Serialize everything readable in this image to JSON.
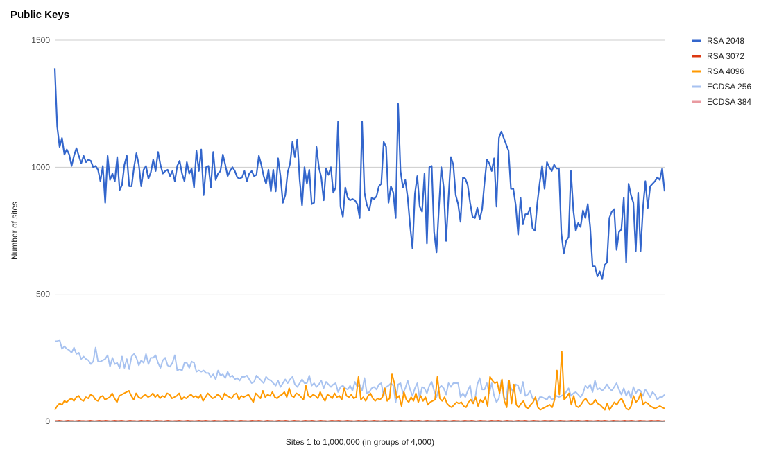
{
  "chart_data": {
    "type": "line",
    "title": "Public Keys",
    "xlabel": "Sites 1 to 1,000,000 (in groups of 4,000)",
    "ylabel": "Number of sites",
    "ylim": [
      0,
      1500
    ],
    "yticks": [
      0,
      500,
      1000,
      1500
    ],
    "grid": true,
    "legend_position": "right",
    "series": [
      {
        "name": "RSA 2048",
        "color": "#3366cc",
        "values": [
          1390,
          1160,
          1080,
          1115,
          1050,
          1070,
          1050,
          1005,
          1045,
          1075,
          1045,
          1015,
          1045,
          1020,
          1030,
          1025,
          1000,
          1005,
          990,
          945,
          1005,
          860,
          1045,
          950,
          975,
          945,
          1040,
          910,
          930,
          1010,
          1045,
          925,
          925,
          1000,
          1055,
          1010,
          925,
          990,
          1005,
          955,
          980,
          1030,
          985,
          1060,
          1010,
          975,
          985,
          990,
          965,
          985,
          945,
          1005,
          1025,
          975,
          945,
          1020,
          975,
          995,
          920,
          1065,
          985,
          1070,
          890,
          1000,
          1005,
          920,
          1060,
          950,
          975,
          985,
          1050,
          1010,
          965,
          985,
          1000,
          985,
          960,
          955,
          960,
          985,
          945,
          975,
          985,
          965,
          970,
          1045,
          1010,
          965,
          935,
          990,
          905,
          990,
          905,
          1035,
          965,
          860,
          890,
          980,
          1015,
          1100,
          1040,
          1110,
          950,
          850,
          1000,
          935,
          990,
          855,
          860,
          1080,
          1000,
          960,
          870,
          995,
          970,
          1000,
          900,
          920,
          1180,
          845,
          805,
          920,
          880,
          870,
          875,
          870,
          855,
          800,
          1180,
          900,
          850,
          830,
          880,
          875,
          885,
          925,
          935,
          1100,
          1080,
          860,
          925,
          900,
          800,
          1250,
          985,
          920,
          950,
          880,
          770,
          680,
          895,
          965,
          845,
          825,
          975,
          700,
          1000,
          1005,
          745,
          665,
          840,
          1000,
          920,
          710,
          880,
          1040,
          1010,
          890,
          855,
          785,
          960,
          955,
          930,
          860,
          805,
          800,
          840,
          795,
          835,
          940,
          1030,
          1015,
          985,
          1035,
          845,
          1115,
          1140,
          1115,
          1090,
          1065,
          915,
          915,
          850,
          735,
          880,
          775,
          815,
          815,
          840,
          760,
          750,
          860,
          940,
          1005,
          915,
          1020,
          1000,
          985,
          1010,
          995,
          995,
          740,
          660,
          710,
          725,
          985,
          830,
          750,
          780,
          765,
          830,
          800,
          855,
          765,
          610,
          610,
          570,
          590,
          560,
          615,
          625,
          800,
          825,
          835,
          675,
          745,
          755,
          880,
          625,
          935,
          890,
          860,
          670,
          900,
          670,
          840,
          945,
          840,
          925,
          935,
          945,
          960,
          950,
          995,
          905
        ]
      },
      {
        "name": "RSA 3072",
        "color": "#dc3912",
        "values": [
          2,
          2,
          3,
          2,
          1,
          2,
          3,
          2,
          2,
          1,
          2,
          3,
          2,
          2,
          1,
          2,
          3,
          2,
          1,
          2,
          3,
          2,
          2,
          3,
          2,
          1,
          2,
          3,
          2,
          2,
          3,
          2,
          1,
          2,
          3,
          2,
          2,
          1,
          2,
          3,
          2,
          2,
          3,
          2,
          1,
          2,
          3,
          2,
          2,
          1,
          2,
          3,
          2,
          1,
          2,
          2,
          3,
          2,
          1,
          2,
          3,
          2,
          2,
          1,
          2,
          3,
          2,
          2,
          3,
          2,
          1,
          2,
          3,
          2,
          2,
          1,
          2,
          3,
          2,
          2,
          3,
          2,
          1,
          2,
          3,
          2,
          2,
          1,
          2,
          3,
          2,
          2,
          3,
          2,
          1,
          2,
          3,
          2,
          2,
          1,
          2,
          3,
          2,
          2,
          3,
          2,
          1,
          2,
          3,
          2,
          2,
          1,
          2,
          3,
          2,
          2,
          3,
          2,
          1,
          2,
          3,
          2,
          2,
          1,
          2,
          3,
          2,
          2,
          3,
          2,
          1,
          2,
          3,
          2,
          2,
          1,
          2,
          3,
          2,
          2,
          3,
          2,
          1,
          2,
          3,
          2,
          2,
          1,
          2,
          3,
          2,
          2,
          3,
          2,
          1,
          2,
          3,
          2,
          2,
          1,
          2,
          3,
          2,
          2,
          3,
          2,
          1,
          2,
          3,
          2,
          2,
          1,
          2,
          3,
          2,
          2,
          3,
          2,
          1,
          2,
          3,
          2,
          2,
          1,
          2,
          3,
          2,
          2,
          3,
          2,
          1,
          2,
          3,
          2,
          2,
          1,
          2,
          3,
          2,
          2,
          3,
          2,
          1,
          2,
          3,
          2,
          2,
          1,
          2,
          3,
          2,
          2,
          3,
          2,
          1,
          2,
          3,
          2,
          2,
          1,
          2,
          3,
          2,
          2,
          3,
          2,
          1,
          2,
          3,
          2,
          2,
          1,
          2,
          3,
          2,
          2,
          3,
          2,
          1,
          2,
          3,
          2,
          2,
          1,
          2,
          3,
          2,
          2,
          3,
          2,
          1,
          2,
          3,
          2,
          2,
          1,
          2,
          3,
          2,
          2,
          3,
          2,
          1,
          2,
          3,
          2,
          2,
          1,
          2,
          3,
          2,
          2,
          3,
          2,
          1,
          2
        ]
      },
      {
        "name": "RSA 4096",
        "color": "#ff9900",
        "values": [
          45,
          60,
          70,
          65,
          80,
          75,
          85,
          90,
          80,
          95,
          100,
          85,
          80,
          95,
          90,
          105,
          100,
          85,
          80,
          95,
          100,
          85,
          90,
          95,
          110,
          90,
          75,
          100,
          105,
          110,
          115,
          120,
          100,
          85,
          110,
          95,
          90,
          100,
          105,
          95,
          100,
          110,
          95,
          105,
          90,
          100,
          95,
          110,
          105,
          90,
          95,
          100,
          110,
          85,
          95,
          90,
          100,
          105,
          95,
          100,
          90,
          105,
          80,
          95,
          110,
          100,
          90,
          95,
          105,
          100,
          85,
          110,
          100,
          95,
          90,
          105,
          110,
          85,
          100,
          95,
          100,
          105,
          90,
          75,
          110,
          100,
          90,
          120,
          95,
          105,
          100,
          115,
          95,
          90,
          100,
          105,
          115,
          95,
          130,
          100,
          95,
          110,
          105,
          95,
          85,
          140,
          100,
          95,
          105,
          100,
          90,
          115,
          95,
          80,
          105,
          100,
          90,
          110,
          95,
          100,
          85,
          130,
          100,
          95,
          105,
          90,
          95,
          175,
          85,
          95,
          80,
          100,
          110,
          90,
          80,
          90,
          85,
          95,
          130,
          80,
          90,
          185,
          150,
          90,
          100,
          60,
          115,
          85,
          75,
          95,
          80,
          110,
          75,
          100,
          80,
          95,
          65,
          75,
          80,
          85,
          175,
          90,
          80,
          95,
          70,
          60,
          55,
          65,
          75,
          70,
          75,
          60,
          55,
          75,
          85,
          70,
          95,
          60,
          85,
          75,
          95,
          60,
          175,
          160,
          150,
          155,
          110,
          165,
          80,
          55,
          160,
          70,
          145,
          65,
          55,
          70,
          80,
          55,
          50,
          65,
          75,
          95,
          55,
          45,
          50,
          55,
          60,
          65,
          55,
          85,
          200,
          105,
          275,
          85,
          95,
          110,
          65,
          100,
          60,
          55,
          65,
          80,
          90,
          75,
          65,
          70,
          85,
          70,
          65,
          55,
          45,
          70,
          45,
          60,
          75,
          65,
          80,
          90,
          70,
          50,
          45,
          60,
          100,
          75,
          85,
          110,
          65,
          75,
          70,
          60,
          55,
          50,
          55,
          60,
          55,
          50
        ]
      },
      {
        "name": "ECDSA 256",
        "color": "#a7c2f0",
        "values": [
          315,
          315,
          320,
          285,
          295,
          285,
          280,
          270,
          290,
          265,
          270,
          245,
          255,
          245,
          240,
          225,
          235,
          290,
          235,
          235,
          240,
          245,
          260,
          215,
          250,
          225,
          230,
          210,
          255,
          210,
          245,
          205,
          255,
          265,
          250,
          220,
          240,
          230,
          265,
          225,
          250,
          250,
          260,
          230,
          210,
          240,
          250,
          220,
          215,
          230,
          260,
          200,
          205,
          200,
          230,
          230,
          210,
          235,
          230,
          195,
          200,
          195,
          200,
          190,
          190,
          175,
          185,
          165,
          200,
          180,
          185,
          170,
          195,
          175,
          180,
          165,
          170,
          160,
          175,
          175,
          180,
          165,
          150,
          155,
          180,
          170,
          160,
          150,
          175,
          165,
          160,
          150,
          140,
          160,
          135,
          150,
          165,
          150,
          165,
          175,
          145,
          135,
          150,
          165,
          150,
          150,
          180,
          140,
          150,
          135,
          145,
          160,
          130,
          155,
          145,
          135,
          145,
          150,
          115,
          135,
          140,
          130,
          125,
          140,
          120,
          155,
          135,
          145,
          120,
          170,
          110,
          115,
          130,
          135,
          125,
          145,
          150,
          100,
          135,
          140,
          150,
          140,
          75,
          145,
          150,
          110,
          130,
          160,
          125,
          100,
          130,
          150,
          90,
          135,
          130,
          110,
          140,
          155,
          120,
          95,
          130,
          140,
          130,
          105,
          150,
          135,
          150,
          150,
          150,
          95,
          110,
          95,
          120,
          140,
          80,
          85,
          145,
          170,
          125,
          125,
          150,
          110,
          150,
          100,
          75,
          90,
          160,
          95,
          85,
          160,
          130,
          115,
          145,
          140,
          110,
          155,
          100,
          105,
          120,
          90,
          85,
          75,
          95,
          95,
          90,
          85,
          100,
          85,
          90,
          100,
          95,
          100,
          105,
          115,
          130,
          100,
          110,
          115,
          105,
          95,
          110,
          140,
          130,
          145,
          115,
          160,
          125,
          130,
          120,
          130,
          145,
          130,
          120,
          135,
          150,
          125,
          105,
          130,
          100,
          120,
          90,
          135,
          110,
          125,
          120,
          100,
          125,
          110,
          95,
          115,
          105,
          85,
          95,
          95,
          105
        ]
      },
      {
        "name": "ECDSA 384",
        "color": "#e99aa0",
        "values": [
          1,
          1,
          2,
          1,
          1,
          0,
          1,
          2,
          1,
          1,
          0,
          1,
          1,
          2,
          1,
          0,
          1,
          1,
          2,
          1,
          0,
          1,
          1,
          2,
          1,
          1,
          0,
          1,
          2,
          1,
          1,
          0,
          1,
          1,
          2,
          1,
          0,
          1,
          1,
          2,
          1,
          1,
          0,
          1,
          2,
          1,
          1,
          0,
          1,
          1,
          2,
          1,
          0,
          1,
          1,
          2,
          1,
          1,
          0,
          1,
          2,
          1,
          1,
          0,
          1,
          1,
          2,
          1,
          0,
          1,
          1,
          2,
          1,
          1,
          0,
          1,
          2,
          1,
          1,
          0,
          1,
          1,
          2,
          1,
          0,
          1,
          1,
          2,
          1,
          1,
          0,
          1,
          2,
          1,
          1,
          0,
          1,
          1,
          2,
          1,
          0,
          1,
          1,
          2,
          1,
          1,
          0,
          1,
          2,
          1,
          1,
          0,
          1,
          1,
          2,
          1,
          0,
          1,
          1,
          2,
          1,
          1,
          0,
          1,
          2,
          1,
          1,
          0,
          1,
          1,
          2,
          1,
          0,
          1,
          1,
          2,
          1,
          1,
          0,
          1,
          2,
          1,
          1,
          0,
          1,
          1,
          2,
          1,
          0,
          1,
          1,
          2,
          1,
          1,
          0,
          1,
          2,
          1,
          1,
          0,
          1,
          1,
          2,
          1,
          0,
          1,
          1,
          2,
          1,
          1,
          0,
          1,
          2,
          1,
          1,
          0,
          1,
          1,
          2,
          1,
          0,
          1,
          1,
          2,
          1,
          1,
          0,
          1,
          2,
          1,
          1,
          0,
          1,
          1,
          2,
          1,
          0,
          1,
          1,
          2,
          1,
          1,
          0,
          1,
          2,
          1,
          1,
          0,
          1,
          1,
          2,
          1,
          0,
          1,
          1,
          2,
          1,
          1,
          0,
          1,
          2,
          1,
          1,
          0,
          1,
          1,
          2,
          1,
          0,
          1,
          1,
          2,
          1,
          1,
          0,
          1,
          2,
          1,
          1,
          0,
          1,
          1,
          2,
          1,
          0,
          1,
          1,
          2,
          1,
          1,
          0,
          1,
          2,
          1,
          1,
          0,
          1,
          1,
          2,
          1,
          0,
          1
        ]
      }
    ]
  }
}
